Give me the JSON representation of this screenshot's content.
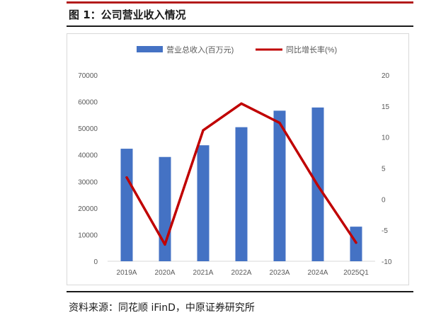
{
  "figure": {
    "title": "图 1：公司营业收入情况",
    "source": "资料来源：同花顺 iFinD，中原证券研究所"
  },
  "chart_data": {
    "type": "bar",
    "categories": [
      "2019A",
      "2020A",
      "2021A",
      "2022A",
      "2023A",
      "2024A",
      "2025Q1"
    ],
    "series": [
      {
        "name": "营业总收入(百万元)",
        "type": "bar",
        "axis": "left",
        "color": "#4472c4",
        "values": [
          42300,
          39200,
          43600,
          50400,
          56600,
          57800,
          13000
        ]
      },
      {
        "name": "同比增长率(%)",
        "type": "line",
        "axis": "right",
        "color": "#c00000",
        "values": [
          3.5,
          -7.3,
          11.1,
          15.4,
          12.3,
          2.2,
          -7.0
        ]
      }
    ],
    "left_axis": {
      "range": [
        0,
        70000
      ],
      "ticks": [
        "0",
        "10000",
        "20000",
        "30000",
        "40000",
        "50000",
        "60000",
        "70000"
      ]
    },
    "right_axis": {
      "range": [
        -10,
        20
      ],
      "ticks": [
        "-10",
        "-5",
        "0",
        "5",
        "10",
        "15",
        "20"
      ]
    },
    "grid": false,
    "legend_position": "top"
  }
}
